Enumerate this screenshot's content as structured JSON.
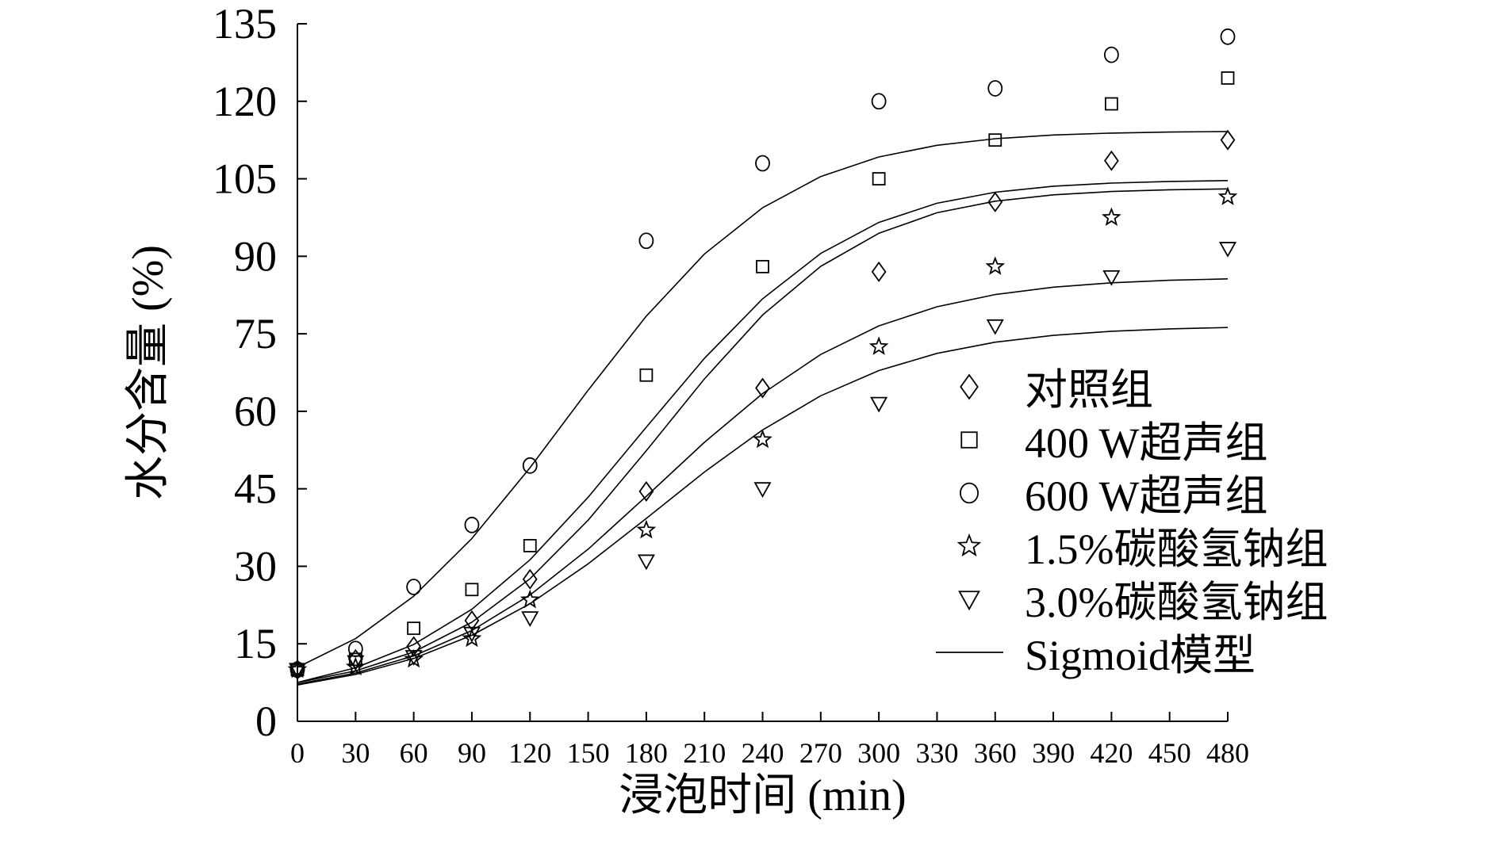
{
  "chart_data": {
    "type": "scatter",
    "title": "",
    "xlabel": "浸泡时间 (min)",
    "ylabel": "水分含量 (%)",
    "xlim": [
      0,
      480
    ],
    "ylim": [
      0,
      135
    ],
    "xticks": [
      0,
      30,
      60,
      90,
      120,
      150,
      180,
      210,
      240,
      270,
      300,
      330,
      360,
      390,
      420,
      450,
      480
    ],
    "yticks": [
      0,
      15,
      30,
      45,
      60,
      75,
      90,
      105,
      120,
      135
    ],
    "grid": false,
    "legend_position": "right",
    "x": [
      0,
      30,
      60,
      90,
      120,
      180,
      240,
      300,
      360,
      420,
      480
    ],
    "series": [
      {
        "name": "对照组",
        "marker": "diamond",
        "values": [
          10,
          12,
          14.5,
          19.5,
          27.5,
          44.5,
          64.5,
          87,
          100.5,
          108.5,
          112.5
        ]
      },
      {
        "name": "400 W超声组",
        "marker": "square",
        "values": [
          10,
          12,
          18,
          25.5,
          34,
          67,
          88,
          105,
          112.5,
          119.5,
          124.5
        ]
      },
      {
        "name": "600 W超声组",
        "marker": "circle",
        "values": [
          10,
          14,
          26,
          38,
          49.5,
          93,
          108,
          120,
          122.5,
          129,
          132.5
        ]
      },
      {
        "name": "1.5%碳酸氢钠组",
        "marker": "star",
        "values": [
          10,
          10.5,
          12,
          16,
          23.5,
          37,
          54.5,
          72.5,
          88,
          97.5,
          101.5
        ]
      },
      {
        "name": "3.0%碳酸氢钠组",
        "marker": "triangle-down",
        "values": [
          10,
          11.5,
          12.5,
          17,
          20,
          31,
          45,
          61.5,
          76.5,
          86,
          91.5
        ]
      }
    ],
    "fit_legend": "Sigmoid模型",
    "fit_curves": [
      {
        "values": [
          7.5,
          9.76,
          13.43,
          19.17,
          27.6,
          38.94,
          52.38,
          66.28,
          78.63,
          88.06,
          94.46,
          98.42,
          100.67,
          101.9,
          102.54,
          102.88,
          103.05
        ]
      },
      {
        "values": [
          7.52,
          10.36,
          14.86,
          21.68,
          31.26,
          43.39,
          56.93,
          70.26,
          81.77,
          90.56,
          96.56,
          100.27,
          102.4,
          103.56,
          104.17,
          104.49,
          104.65
        ]
      },
      {
        "values": [
          10.45,
          16.0,
          24.21,
          35.38,
          49.09,
          64.09,
          78.43,
          90.45,
          99.4,
          105.44,
          109.23,
          111.48,
          112.76,
          113.47,
          113.84,
          114.05,
          114.15
        ]
      },
      {
        "values": [
          7.21,
          9.35,
          12.66,
          17.57,
          24.45,
          33.32,
          43.55,
          54.0,
          63.43,
          71.0,
          76.53,
          80.24,
          82.59,
          84.02,
          84.86,
          85.35,
          85.63
        ]
      },
      {
        "values": [
          7.03,
          9.07,
          12.16,
          16.64,
          22.76,
          30.48,
          39.28,
          48.24,
          56.39,
          63.0,
          67.89,
          71.22,
          73.37,
          74.7,
          75.49,
          75.95,
          76.22
        ]
      }
    ],
    "fit_x": [
      0,
      30,
      60,
      90,
      120,
      150,
      180,
      210,
      240,
      270,
      300,
      330,
      360,
      390,
      420,
      450,
      480
    ]
  }
}
